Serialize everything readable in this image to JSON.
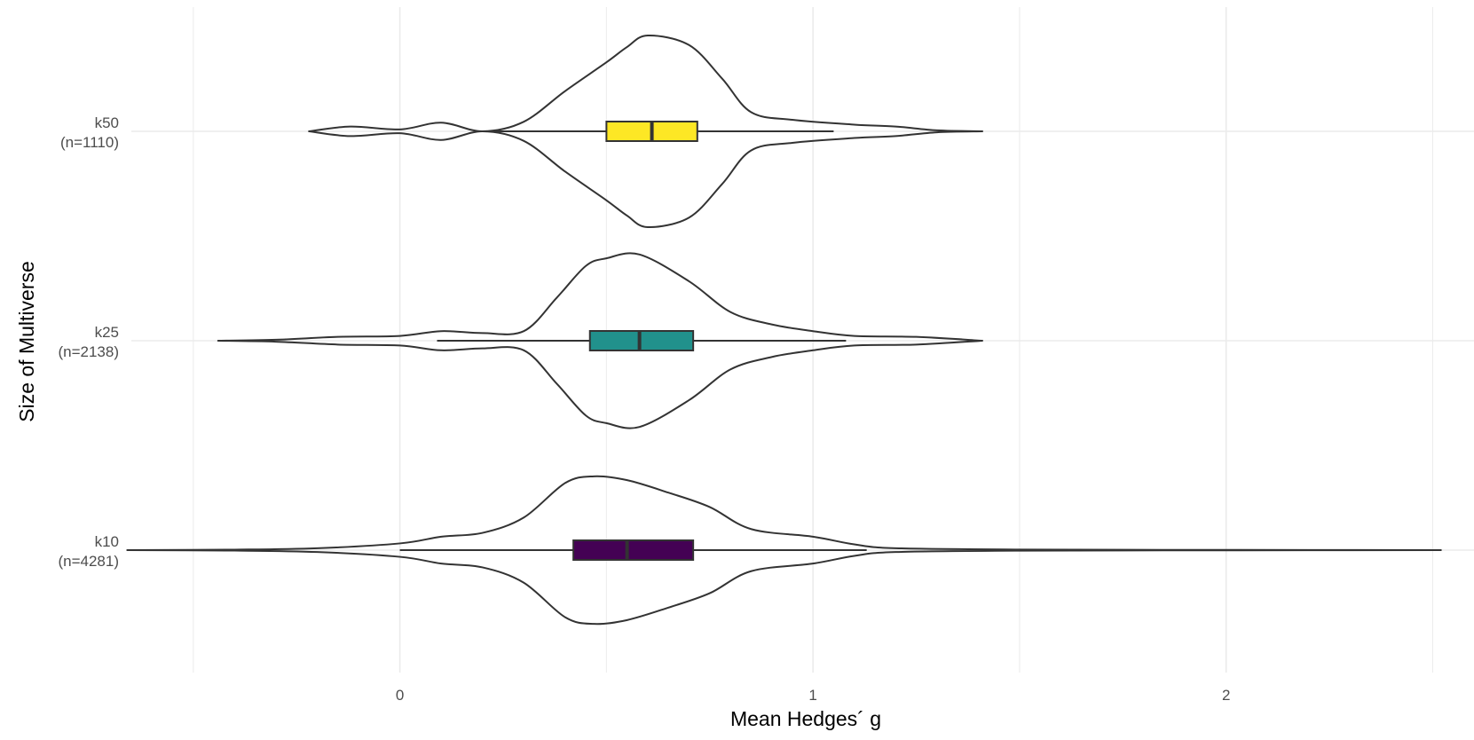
{
  "chart_data": {
    "type": "violin",
    "title": "",
    "xlabel": "Mean Hedges´ g",
    "ylabel": "Size of Multiverse",
    "xlim": [
      -0.65,
      2.6
    ],
    "xticks": [
      0,
      1,
      2
    ],
    "grid": true,
    "legend": "none",
    "line_color": "#333333",
    "grid_color": "#ebebeb",
    "categories": [
      {
        "name": "k50",
        "n_label": "(n=1110)",
        "fill": "#fde725",
        "violin_range": [
          -0.22,
          1.41
        ],
        "box": {
          "q1": 0.5,
          "median": 0.61,
          "q3": 0.72,
          "whisker_low": 0.21,
          "whisker_high": 1.05
        },
        "density": [
          [
            -0.22,
            0.0
          ],
          [
            -0.12,
            0.05
          ],
          [
            0.0,
            0.02
          ],
          [
            0.1,
            0.09
          ],
          [
            0.2,
            0.0
          ],
          [
            0.3,
            0.1
          ],
          [
            0.4,
            0.42
          ],
          [
            0.5,
            0.72
          ],
          [
            0.55,
            0.88
          ],
          [
            0.6,
            1.0
          ],
          [
            0.7,
            0.9
          ],
          [
            0.78,
            0.55
          ],
          [
            0.85,
            0.2
          ],
          [
            0.95,
            0.12
          ],
          [
            1.1,
            0.07
          ],
          [
            1.2,
            0.05
          ],
          [
            1.3,
            0.01
          ],
          [
            1.41,
            0.0
          ]
        ]
      },
      {
        "name": "k25",
        "n_label": "(n=2138)",
        "fill": "#21918c",
        "violin_range": [
          -0.44,
          1.41
        ],
        "box": {
          "q1": 0.46,
          "median": 0.58,
          "q3": 0.71,
          "whisker_low": 0.09,
          "whisker_high": 1.08
        },
        "density": [
          [
            -0.44,
            0.0
          ],
          [
            -0.3,
            0.01
          ],
          [
            -0.15,
            0.04
          ],
          [
            0.0,
            0.05
          ],
          [
            0.1,
            0.1
          ],
          [
            0.2,
            0.08
          ],
          [
            0.3,
            0.1
          ],
          [
            0.38,
            0.45
          ],
          [
            0.45,
            0.78
          ],
          [
            0.5,
            0.86
          ],
          [
            0.58,
            0.9
          ],
          [
            0.7,
            0.62
          ],
          [
            0.8,
            0.3
          ],
          [
            0.9,
            0.17
          ],
          [
            1.0,
            0.1
          ],
          [
            1.1,
            0.05
          ],
          [
            1.25,
            0.04
          ],
          [
            1.41,
            0.0
          ]
        ]
      },
      {
        "name": "k10",
        "n_label": "(n=4281)",
        "fill": "#440154",
        "violin_range": [
          -0.66,
          2.52
        ],
        "box": {
          "q1": 0.42,
          "median": 0.55,
          "q3": 0.71,
          "whisker_low": 0.0,
          "whisker_high": 1.13
        },
        "density": [
          [
            -0.66,
            0.0
          ],
          [
            -0.4,
            0.005
          ],
          [
            -0.2,
            0.02
          ],
          [
            0.0,
            0.07
          ],
          [
            0.1,
            0.14
          ],
          [
            0.2,
            0.18
          ],
          [
            0.3,
            0.34
          ],
          [
            0.4,
            0.7
          ],
          [
            0.47,
            0.77
          ],
          [
            0.55,
            0.73
          ],
          [
            0.65,
            0.6
          ],
          [
            0.75,
            0.45
          ],
          [
            0.85,
            0.22
          ],
          [
            1.0,
            0.14
          ],
          [
            1.1,
            0.06
          ],
          [
            1.2,
            0.02
          ],
          [
            1.5,
            0.006
          ],
          [
            2.0,
            0.002
          ],
          [
            2.52,
            0.0
          ]
        ]
      }
    ]
  }
}
